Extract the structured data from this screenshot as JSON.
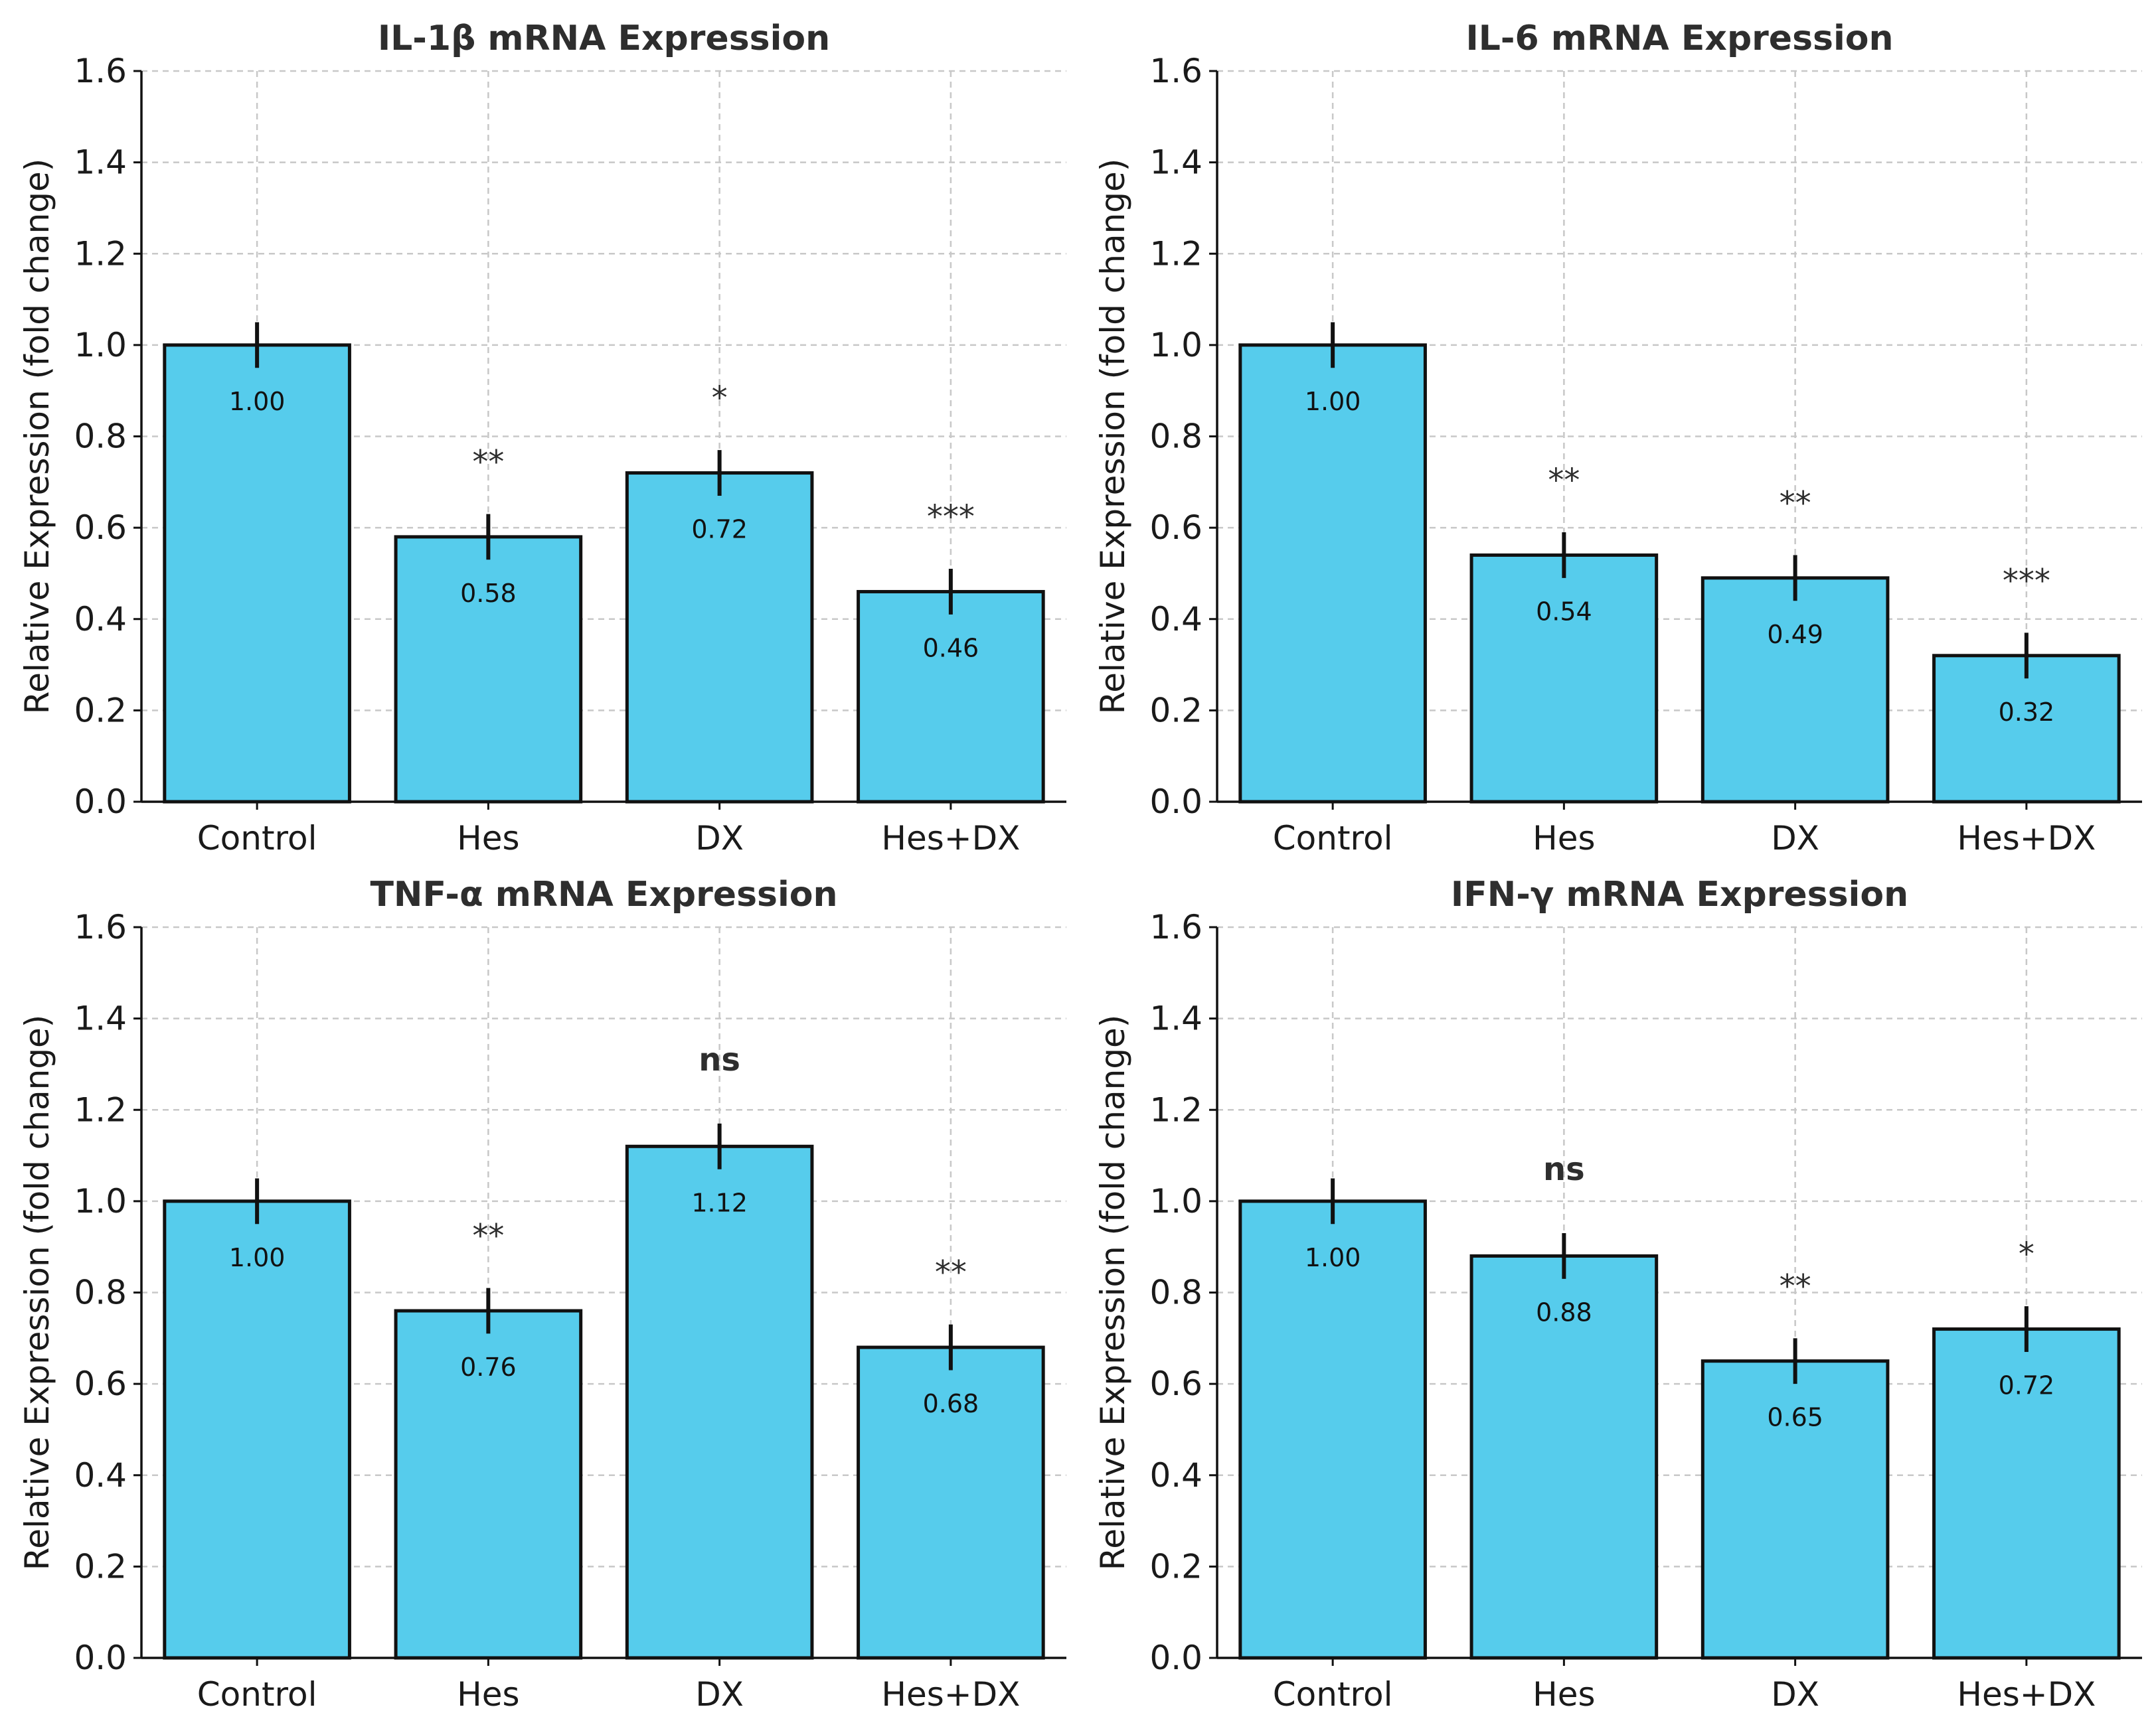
{
  "chart_data": [
    {
      "type": "bar",
      "title": "IL-1β mRNA Expression",
      "ylabel": "Relative Expression (fold change)",
      "xlabel": "",
      "categories": [
        "Control",
        "Hes",
        "DX",
        "Hes+DX"
      ],
      "values": [
        1.0,
        0.58,
        0.72,
        0.46
      ],
      "value_labels": [
        "1.00",
        "0.58",
        "0.72",
        "0.46"
      ],
      "errors": [
        0.05,
        0.05,
        0.05,
        0.05
      ],
      "significance": [
        "",
        "**",
        "*",
        "***"
      ],
      "ylim": [
        0,
        1.6
      ],
      "yticks": [
        "0.0",
        "0.2",
        "0.4",
        "0.6",
        "0.8",
        "1.0",
        "1.2",
        "1.4",
        "1.6"
      ],
      "grid": true,
      "bar_color": "#56ccec"
    },
    {
      "type": "bar",
      "title": "IL-6 mRNA Expression",
      "ylabel": "Relative Expression (fold change)",
      "xlabel": "",
      "categories": [
        "Control",
        "Hes",
        "DX",
        "Hes+DX"
      ],
      "values": [
        1.0,
        0.54,
        0.49,
        0.32
      ],
      "value_labels": [
        "1.00",
        "0.54",
        "0.49",
        "0.32"
      ],
      "errors": [
        0.05,
        0.05,
        0.05,
        0.05
      ],
      "significance": [
        "",
        "**",
        "**",
        "***"
      ],
      "ylim": [
        0,
        1.6
      ],
      "yticks": [
        "0.0",
        "0.2",
        "0.4",
        "0.6",
        "0.8",
        "1.0",
        "1.2",
        "1.4",
        "1.6"
      ],
      "grid": true,
      "bar_color": "#56ccec"
    },
    {
      "type": "bar",
      "title": "TNF-α mRNA Expression",
      "ylabel": "Relative Expression (fold change)",
      "xlabel": "",
      "categories": [
        "Control",
        "Hes",
        "DX",
        "Hes+DX"
      ],
      "values": [
        1.0,
        0.76,
        1.12,
        0.68
      ],
      "value_labels": [
        "1.00",
        "0.76",
        "1.12",
        "0.68"
      ],
      "errors": [
        0.05,
        0.05,
        0.05,
        0.05
      ],
      "significance": [
        "",
        "**",
        "ns",
        "**"
      ],
      "ylim": [
        0,
        1.6
      ],
      "yticks": [
        "0.0",
        "0.2",
        "0.4",
        "0.6",
        "0.8",
        "1.0",
        "1.2",
        "1.4",
        "1.6"
      ],
      "grid": true,
      "bar_color": "#56ccec"
    },
    {
      "type": "bar",
      "title": "IFN-γ mRNA Expression",
      "ylabel": "Relative Expression (fold change)",
      "xlabel": "",
      "categories": [
        "Control",
        "Hes",
        "DX",
        "Hes+DX"
      ],
      "values": [
        1.0,
        0.88,
        0.65,
        0.72
      ],
      "value_labels": [
        "1.00",
        "0.88",
        "0.65",
        "0.72"
      ],
      "errors": [
        0.05,
        0.05,
        0.05,
        0.05
      ],
      "significance": [
        "",
        "ns",
        "**",
        "*"
      ],
      "ylim": [
        0,
        1.6
      ],
      "yticks": [
        "0.0",
        "0.2",
        "0.4",
        "0.6",
        "0.8",
        "1.0",
        "1.2",
        "1.4",
        "1.6"
      ],
      "grid": true,
      "bar_color": "#56ccec"
    }
  ]
}
